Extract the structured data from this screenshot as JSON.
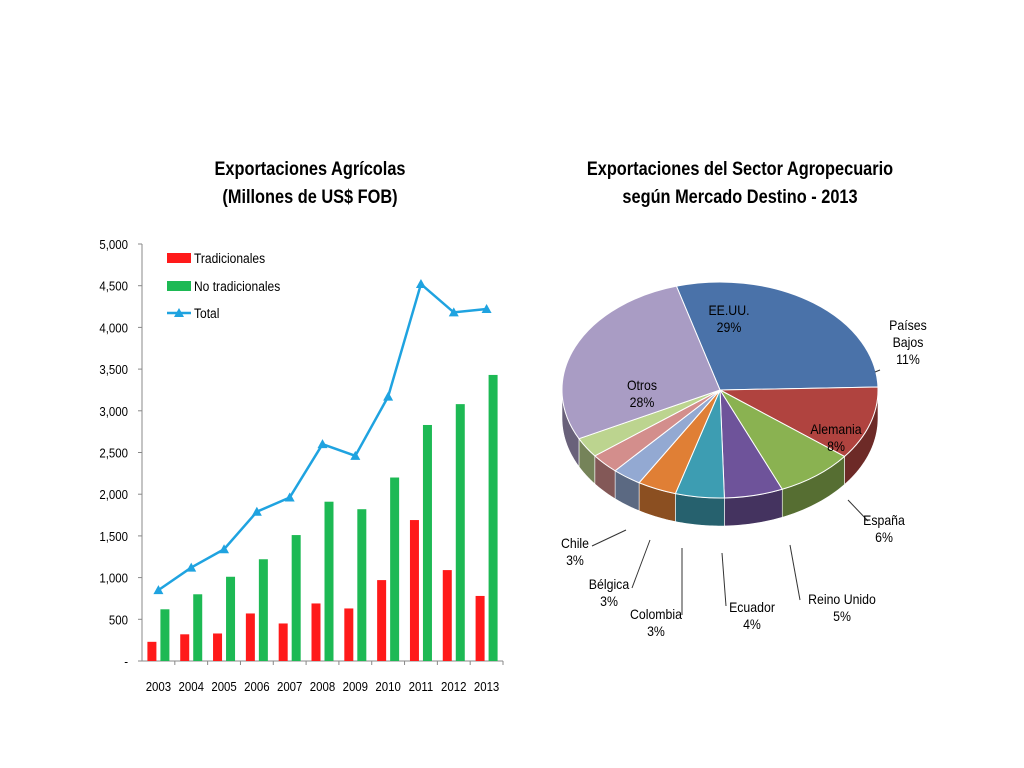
{
  "chart_data": [
    {
      "type": "bar",
      "title_lines": [
        "Exportaciones Agrícolas",
        "(Millones de US$ FOB)"
      ],
      "categories": [
        "2003",
        "2004",
        "2005",
        "2006",
        "2007",
        "2008",
        "2009",
        "2010",
        "2011",
        "2012",
        "2013"
      ],
      "series": [
        {
          "name": "Tradicionales",
          "type": "bar",
          "color": "#ff1a1a",
          "values": [
            230,
            320,
            330,
            570,
            450,
            690,
            630,
            970,
            1690,
            1090,
            780
          ]
        },
        {
          "name": "No tradicionales",
          "type": "bar",
          "color": "#1db954",
          "values": [
            620,
            800,
            1010,
            1220,
            1510,
            1910,
            1820,
            2200,
            2830,
            3080,
            3430
          ]
        },
        {
          "name": "Total",
          "type": "line",
          "color": "#1fa3e0",
          "marker": "triangle",
          "values": [
            850,
            1120,
            1340,
            1790,
            1960,
            2600,
            2460,
            3170,
            4520,
            4180,
            4220
          ]
        }
      ],
      "yticks": [
        "-",
        "500",
        "1,000",
        "1,500",
        "2,000",
        "2,500",
        "3,000",
        "3,500",
        "4,000",
        "4,500",
        "5,000"
      ],
      "ylim": [
        0,
        5000
      ],
      "legend_position": "top-left",
      "grid": false
    },
    {
      "type": "pie",
      "style": "3d",
      "title_lines": [
        "Exportaciones del Sector Agropecuario",
        "según Mercado Destino - 2013"
      ],
      "slices": [
        {
          "label": "EE.UU.",
          "value": 29,
          "pct_label": "29%",
          "color": "#4a72a9",
          "label_inside": true
        },
        {
          "label": "Países Bajos",
          "value": 11,
          "pct_label": "11%",
          "color": "#b0433f",
          "label_inside": false
        },
        {
          "label": "Alemania",
          "value": 8,
          "pct_label": "8%",
          "color": "#8ab251",
          "label_inside": true
        },
        {
          "label": "España",
          "value": 6,
          "pct_label": "6%",
          "color": "#6e539a",
          "label_inside": false
        },
        {
          "label": "Reino Unido",
          "value": 5,
          "pct_label": "5%",
          "color": "#3d9db2",
          "label_inside": false
        },
        {
          "label": "Ecuador",
          "value": 4,
          "pct_label": "4%",
          "color": "#e07f35",
          "label_inside": false
        },
        {
          "label": "Colombia",
          "value": 3,
          "pct_label": "3%",
          "color": "#93a9d2",
          "label_inside": false
        },
        {
          "label": "Bélgica",
          "value": 3,
          "pct_label": "3%",
          "color": "#d38e8c",
          "label_inside": false
        },
        {
          "label": "Chile",
          "value": 3,
          "pct_label": "3%",
          "color": "#bcd48f",
          "label_inside": false
        },
        {
          "label": "Otros",
          "value": 28,
          "pct_label": "28%",
          "color": "#a99cc4",
          "label_inside": true
        }
      ]
    }
  ]
}
